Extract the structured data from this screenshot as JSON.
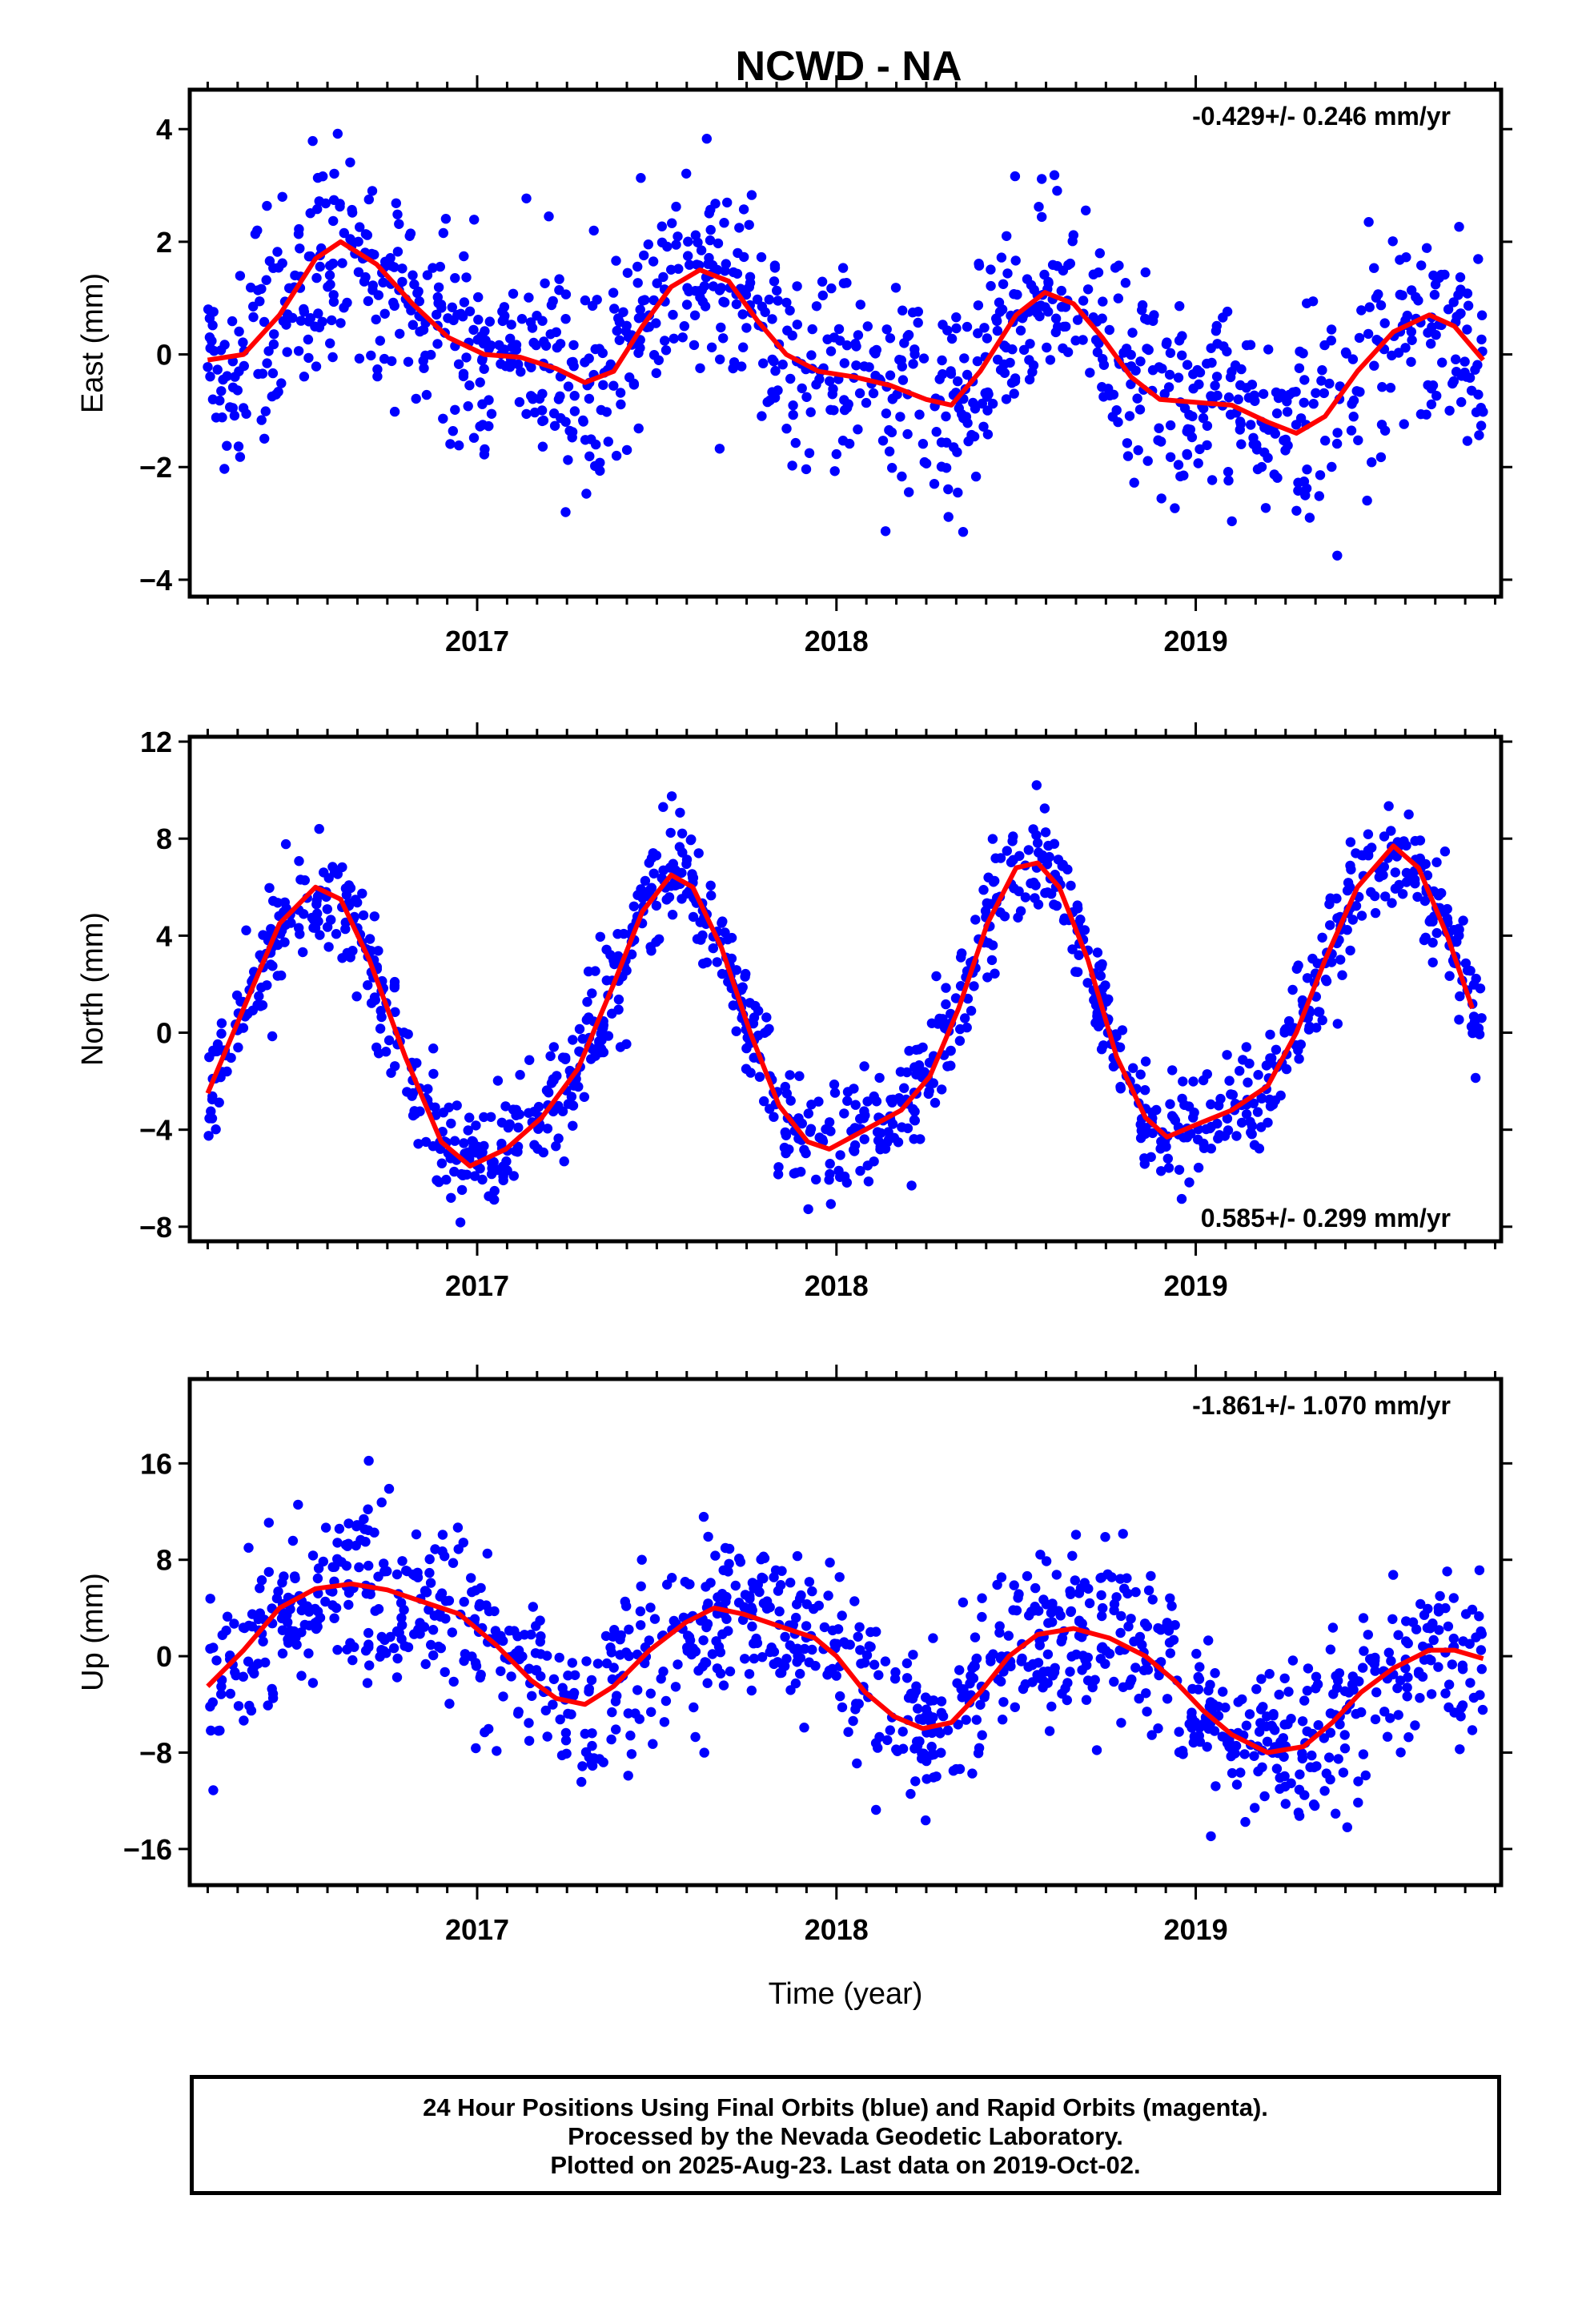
{
  "title": "NCWD - NA",
  "colors": {
    "points": "#0000ff",
    "fit": "#ff0000",
    "frame": "#000000"
  },
  "chart_data": [
    {
      "type": "scatter",
      "component": "East",
      "ylabel": "East (mm)",
      "xlabel": "",
      "xlim": [
        2016.2,
        2019.85
      ],
      "ylim": [
        -4.3,
        4.7
      ],
      "yticks": [
        "4",
        "2",
        "0",
        "−2",
        "−4"
      ],
      "ytick_values": [
        4,
        2,
        0,
        -2,
        -4
      ],
      "xticks": [
        "2017",
        "2018",
        "2019"
      ],
      "xtick_values": [
        2017,
        2018,
        2019
      ],
      "rate_label": "-0.429+/- 0.246 mm/yr",
      "rate_position": "top-right",
      "trend": -0.429,
      "fit_points": [
        [
          2016.25,
          -0.1
        ],
        [
          2016.35,
          0.0
        ],
        [
          2016.45,
          0.7
        ],
        [
          2016.55,
          1.7
        ],
        [
          2016.62,
          2.0
        ],
        [
          2016.72,
          1.6
        ],
        [
          2016.82,
          0.9
        ],
        [
          2016.92,
          0.3
        ],
        [
          2017.02,
          0.0
        ],
        [
          2017.12,
          -0.05
        ],
        [
          2017.22,
          -0.25
        ],
        [
          2017.3,
          -0.5
        ],
        [
          2017.38,
          -0.3
        ],
        [
          2017.46,
          0.5
        ],
        [
          2017.54,
          1.2
        ],
        [
          2017.62,
          1.5
        ],
        [
          2017.7,
          1.3
        ],
        [
          2017.78,
          0.6
        ],
        [
          2017.86,
          0.0
        ],
        [
          2017.95,
          -0.3
        ],
        [
          2018.05,
          -0.4
        ],
        [
          2018.15,
          -0.55
        ],
        [
          2018.25,
          -0.8
        ],
        [
          2018.32,
          -0.9
        ],
        [
          2018.4,
          -0.3
        ],
        [
          2018.5,
          0.7
        ],
        [
          2018.58,
          1.1
        ],
        [
          2018.66,
          0.9
        ],
        [
          2018.74,
          0.3
        ],
        [
          2018.82,
          -0.4
        ],
        [
          2018.9,
          -0.8
        ],
        [
          2019.0,
          -0.85
        ],
        [
          2019.1,
          -0.9
        ],
        [
          2019.2,
          -1.2
        ],
        [
          2019.28,
          -1.4
        ],
        [
          2019.36,
          -1.1
        ],
        [
          2019.45,
          -0.3
        ],
        [
          2019.55,
          0.4
        ],
        [
          2019.65,
          0.7
        ],
        [
          2019.72,
          0.5
        ],
        [
          2019.8,
          -0.1
        ]
      ],
      "scatter_sigma": 0.9
    },
    {
      "type": "scatter",
      "component": "North",
      "ylabel": "North (mm)",
      "xlabel": "",
      "xlim": [
        2016.2,
        2019.85
      ],
      "ylim": [
        -8.6,
        12.2
      ],
      "yticks": [
        "12",
        "8",
        "4",
        "0",
        "−4",
        "−8"
      ],
      "ytick_values": [
        12,
        8,
        4,
        0,
        -4,
        -8
      ],
      "xticks": [
        "2017",
        "2018",
        "2019"
      ],
      "xtick_values": [
        2017,
        2018,
        2019
      ],
      "rate_label": "0.585+/- 0.299 mm/yr",
      "rate_position": "bottom-right",
      "trend": 0.585,
      "fit_points": [
        [
          2016.25,
          -2.5
        ],
        [
          2016.35,
          1.0
        ],
        [
          2016.45,
          4.5
        ],
        [
          2016.55,
          6.0
        ],
        [
          2016.62,
          5.5
        ],
        [
          2016.7,
          3.0
        ],
        [
          2016.8,
          -1.0
        ],
        [
          2016.9,
          -4.5
        ],
        [
          2016.98,
          -5.5
        ],
        [
          2017.08,
          -4.8
        ],
        [
          2017.18,
          -3.5
        ],
        [
          2017.28,
          -1.5
        ],
        [
          2017.38,
          2.0
        ],
        [
          2017.46,
          5.0
        ],
        [
          2017.54,
          6.5
        ],
        [
          2017.6,
          6.0
        ],
        [
          2017.68,
          3.5
        ],
        [
          2017.76,
          0.0
        ],
        [
          2017.84,
          -3.0
        ],
        [
          2017.92,
          -4.5
        ],
        [
          2017.98,
          -4.8
        ],
        [
          2018.08,
          -4.0
        ],
        [
          2018.18,
          -3.2
        ],
        [
          2018.26,
          -1.8
        ],
        [
          2018.34,
          1.0
        ],
        [
          2018.42,
          4.5
        ],
        [
          2018.5,
          6.8
        ],
        [
          2018.56,
          7.0
        ],
        [
          2018.62,
          6.0
        ],
        [
          2018.7,
          3.0
        ],
        [
          2018.78,
          -1.0
        ],
        [
          2018.86,
          -3.5
        ],
        [
          2018.92,
          -4.3
        ],
        [
          2019.0,
          -3.8
        ],
        [
          2019.1,
          -3.2
        ],
        [
          2019.2,
          -2.2
        ],
        [
          2019.28,
          0.0
        ],
        [
          2019.36,
          3.0
        ],
        [
          2019.45,
          6.0
        ],
        [
          2019.55,
          7.7
        ],
        [
          2019.62,
          6.8
        ],
        [
          2019.7,
          4.0
        ],
        [
          2019.77,
          1.0
        ]
      ],
      "scatter_sigma": 1.2
    },
    {
      "type": "scatter",
      "component": "Up",
      "ylabel": "Up (mm)",
      "xlabel": "Time (year)",
      "xlim": [
        2016.2,
        2019.85
      ],
      "ylim": [
        -19,
        23
      ],
      "yticks": [
        "16",
        "8",
        "0",
        "−8",
        "−16"
      ],
      "ytick_values": [
        16,
        8,
        0,
        -8,
        -16
      ],
      "xticks": [
        "2017",
        "2018",
        "2019"
      ],
      "xtick_values": [
        2017,
        2018,
        2019
      ],
      "rate_label": "-1.861+/- 1.070 mm/yr",
      "rate_position": "top-right",
      "trend": -1.861,
      "fit_points": [
        [
          2016.25,
          -2.5
        ],
        [
          2016.35,
          0.5
        ],
        [
          2016.45,
          4.0
        ],
        [
          2016.55,
          5.6
        ],
        [
          2016.65,
          6.0
        ],
        [
          2016.75,
          5.5
        ],
        [
          2016.85,
          4.5
        ],
        [
          2016.95,
          3.5
        ],
        [
          2017.05,
          1.0
        ],
        [
          2017.15,
          -2.0
        ],
        [
          2017.22,
          -3.5
        ],
        [
          2017.3,
          -4.0
        ],
        [
          2017.38,
          -2.5
        ],
        [
          2017.48,
          0.5
        ],
        [
          2017.58,
          2.8
        ],
        [
          2017.66,
          4.0
        ],
        [
          2017.74,
          3.5
        ],
        [
          2017.84,
          2.5
        ],
        [
          2017.94,
          1.5
        ],
        [
          2018.0,
          0.0
        ],
        [
          2018.08,
          -3.0
        ],
        [
          2018.16,
          -5.0
        ],
        [
          2018.24,
          -6.0
        ],
        [
          2018.32,
          -5.5
        ],
        [
          2018.4,
          -3.0
        ],
        [
          2018.48,
          0.0
        ],
        [
          2018.56,
          1.8
        ],
        [
          2018.66,
          2.3
        ],
        [
          2018.76,
          1.5
        ],
        [
          2018.86,
          0.0
        ],
        [
          2018.94,
          -2.0
        ],
        [
          2019.02,
          -4.5
        ],
        [
          2019.1,
          -6.5
        ],
        [
          2019.2,
          -8.0
        ],
        [
          2019.3,
          -7.5
        ],
        [
          2019.38,
          -5.5
        ],
        [
          2019.46,
          -3.0
        ],
        [
          2019.55,
          -1.0
        ],
        [
          2019.65,
          0.5
        ],
        [
          2019.72,
          0.5
        ],
        [
          2019.8,
          -0.2
        ]
      ],
      "scatter_sigma": 3.5
    }
  ],
  "footer": {
    "line1": "24 Hour Positions Using Final Orbits (blue) and Rapid Orbits (magenta).",
    "line2": "Processed by the Nevada Geodetic Laboratory.",
    "line3": "Plotted on 2025-Aug-23. Last data on 2019-Oct-02."
  }
}
